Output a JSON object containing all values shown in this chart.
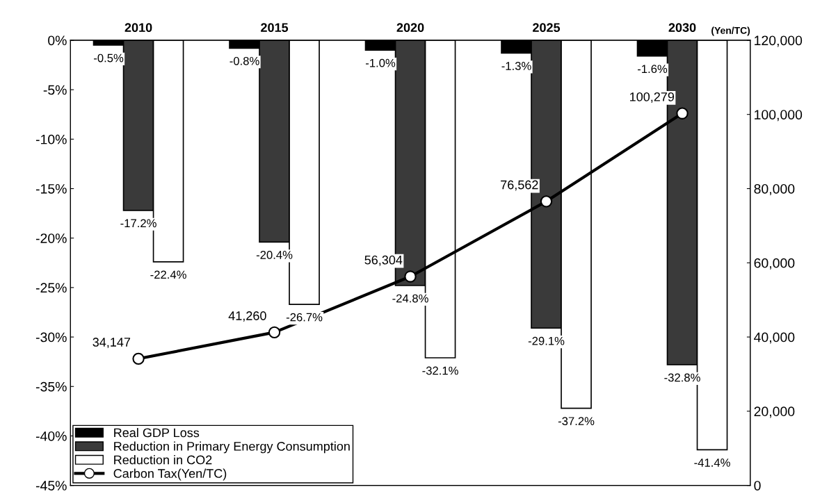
{
  "chart_data": {
    "type": "bar",
    "categories": [
      "2010",
      "2015",
      "2020",
      "2025",
      "2030"
    ],
    "y2label": "(Yen/TC)",
    "ylim": [
      -45,
      0
    ],
    "yticks": [
      {
        "value": 0,
        "label": "0%"
      },
      {
        "value": -5,
        "label": "-5%"
      },
      {
        "value": -10,
        "label": "-10%"
      },
      {
        "value": -15,
        "label": "-15%"
      },
      {
        "value": -20,
        "label": "-20%"
      },
      {
        "value": -25,
        "label": "-25%"
      },
      {
        "value": -30,
        "label": "-30%"
      },
      {
        "value": -35,
        "label": "-35%"
      },
      {
        "value": -40,
        "label": "-40%"
      },
      {
        "value": -45,
        "label": "-45%"
      }
    ],
    "y2lim": [
      0,
      120000
    ],
    "y2ticks": [
      {
        "value": 0,
        "label": "0"
      },
      {
        "value": 20000,
        "label": "20,000"
      },
      {
        "value": 40000,
        "label": "40,000"
      },
      {
        "value": 60000,
        "label": "60,000"
      },
      {
        "value": 80000,
        "label": "80,000"
      },
      {
        "value": 100000,
        "label": "100,000"
      },
      {
        "value": 120000,
        "label": "120,000"
      }
    ],
    "series": [
      {
        "name": "Real GDP Loss",
        "color": "#000000",
        "values": [
          -0.5,
          -0.8,
          -1.0,
          -1.3,
          -1.6
        ],
        "value_labels": [
          "-0.5%",
          "-0.8%",
          "-1.0%",
          "-1.3%",
          "-1.6%"
        ]
      },
      {
        "name": "Reduction in Primary Energy Consumption",
        "color": "#3a3a3a",
        "values": [
          -17.2,
          -20.4,
          -24.8,
          -29.1,
          -32.8
        ],
        "value_labels": [
          "-17.2%",
          "-20.4%",
          "-24.8%",
          "-29.1%",
          "-32.8%"
        ]
      },
      {
        "name": "Reduction in CO2",
        "color": "#ffffff",
        "values": [
          -22.4,
          -26.7,
          -32.1,
          -37.2,
          -41.4
        ],
        "value_labels": [
          "-22.4%",
          "-26.7%",
          "-32.1%",
          "-37.2%",
          "-41.4%"
        ]
      },
      {
        "name": "Carbon Tax(Yen/TC)",
        "type": "line",
        "axis": "y2",
        "color": "#000000",
        "marker": "circle",
        "values": [
          34147,
          41260,
          56304,
          76562,
          100279
        ],
        "value_labels": [
          "34,147",
          "41,260",
          "56,304",
          "76,562",
          "100,279"
        ]
      }
    ],
    "legend": "bottom left",
    "grid": false
  }
}
